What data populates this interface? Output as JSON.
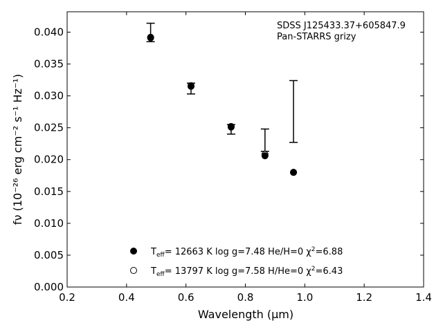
{
  "chart_data": {
    "type": "scatter",
    "annotation": {
      "line1": "SDSS J125433.37+605847.9",
      "line2": "Pan-STARRS grizy"
    },
    "xlabel": "Wavelength (μm)",
    "ylabel": "fν (10⁻²⁶ erg cm⁻² s⁻¹ Hz⁻¹)",
    "xlim": [
      0.2,
      1.4
    ],
    "ylim": [
      0.0,
      0.0432
    ],
    "x_ticks": [
      "0.2",
      "0.4",
      "0.6",
      "0.8",
      "1.0",
      "1.2",
      "1.4"
    ],
    "y_ticks": [
      "0.000",
      "0.005",
      "0.010",
      "0.015",
      "0.020",
      "0.025",
      "0.030",
      "0.035",
      "0.040"
    ],
    "observed": {
      "x": [
        0.481,
        0.617,
        0.752,
        0.866,
        0.962
      ],
      "y_high": [
        0.0414,
        0.032,
        0.0255,
        0.0248,
        0.0324
      ],
      "y_low": [
        0.0385,
        0.0303,
        0.024,
        0.0213,
        0.0227
      ]
    },
    "series": [
      {
        "label_prefix": "T",
        "label_sub": "eff",
        "label_main": "= 12663 K  log g=7.48  He/H=0  χ",
        "label_sup": "2",
        "label_end": "=6.88",
        "marker": "filled",
        "x": [
          0.481,
          0.617,
          0.752,
          0.866,
          0.962
        ],
        "y": [
          0.0392,
          0.0316,
          0.0251,
          0.0206,
          0.018
        ]
      },
      {
        "label_prefix": "T",
        "label_sub": "eff",
        "label_main": "= 13797 K  log g=7.58  H/He=0  χ",
        "label_sup": "2",
        "label_end": "=6.43",
        "marker": "open",
        "x": [
          0.481,
          0.617,
          0.752,
          0.866,
          0.962
        ],
        "y": [
          0.0391,
          0.0315,
          0.0252,
          0.0208,
          0.018
        ]
      }
    ],
    "grid": false,
    "legend_position": "lower-center"
  }
}
